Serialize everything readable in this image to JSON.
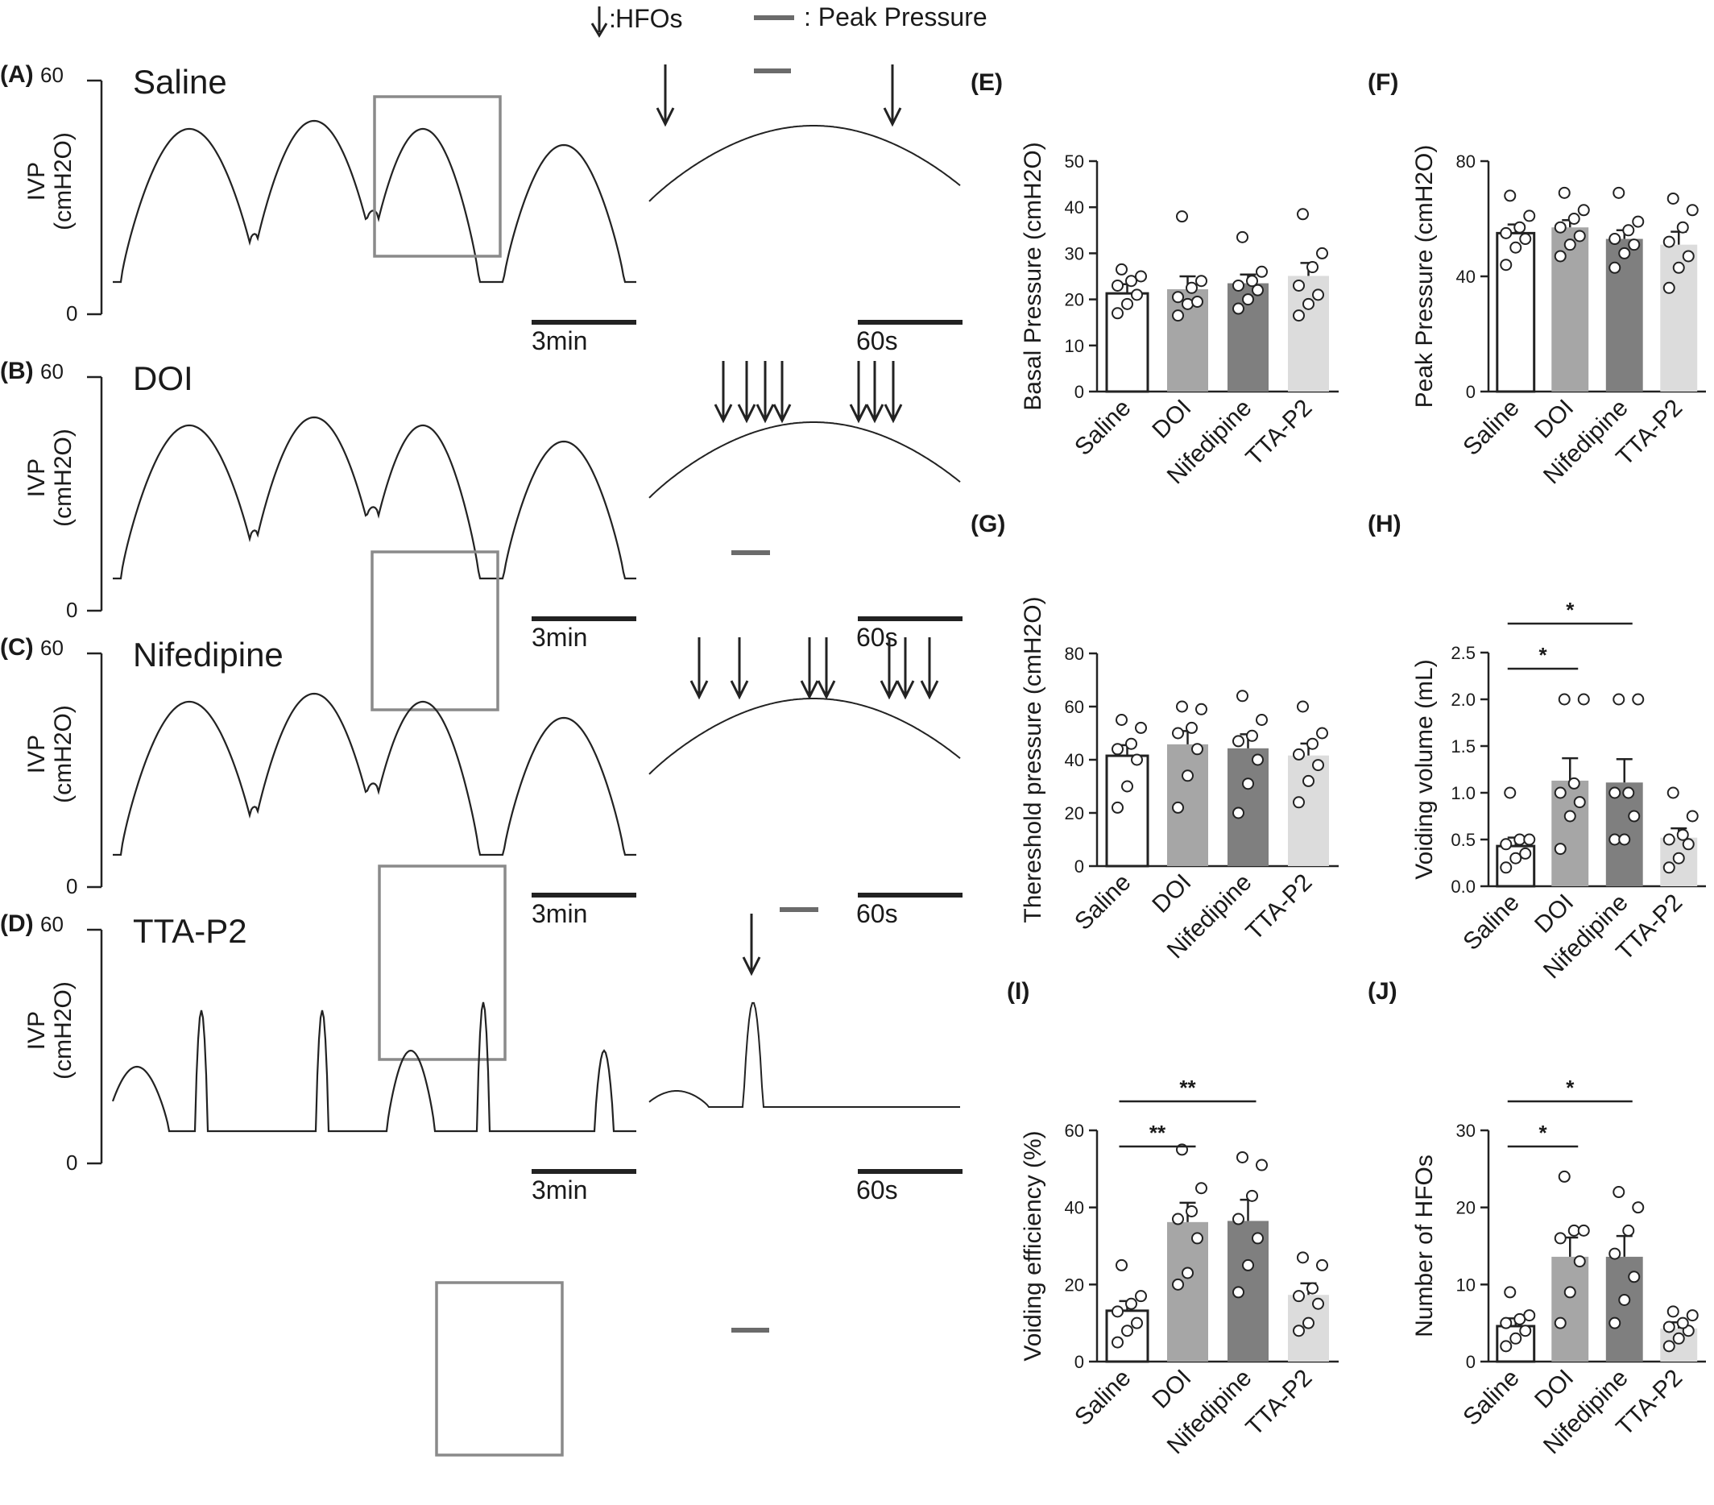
{
  "legend": {
    "hfo_label": "HFOs",
    "hfo_prefix": ":",
    "peak_label": ": Peak Pressure"
  },
  "traces": [
    {
      "letter": "(A)",
      "title": "Saline",
      "ylabel_top": "IVP",
      "ylabel_bottom": "(cmH2O)",
      "ymax": "60",
      "ymin": "0",
      "scale_long": "3min",
      "scale_short": "60s"
    },
    {
      "letter": "(B)",
      "title": "DOI",
      "ylabel_top": "IVP",
      "ylabel_bottom": "(cmH2O)",
      "ymax": "60",
      "ymin": "0",
      "scale_long": "3min",
      "scale_short": "60s"
    },
    {
      "letter": "(C)",
      "title": "Nifedipine",
      "ylabel_top": "IVP",
      "ylabel_bottom": "(cmH2O)",
      "ymax": "60",
      "ymin": "0",
      "scale_long": "3min",
      "scale_short": "60s"
    },
    {
      "letter": "(D)",
      "title": "TTA-P2",
      "ylabel_top": "IVP",
      "ylabel_bottom": "(cmH2O)",
      "ymax": "60",
      "ymin": "0",
      "scale_long": "3min",
      "scale_short": "60s"
    }
  ],
  "bar_colors": [
    "#ffffff",
    "#a6a6a6",
    "#7f7f7f",
    "#dcdcdc"
  ],
  "chart_data": [
    {
      "panel": "(E)",
      "type": "bar",
      "categories": [
        "Saline",
        "DOI",
        "Nifedipine",
        "TTA-P2"
      ],
      "ylabel": "Basal Pressure (cmH2O)",
      "ylim": [
        0,
        50
      ],
      "yticks": [
        0,
        10,
        20,
        30,
        40,
        50
      ],
      "values": [
        21.3,
        22.2,
        23.5,
        25.1
      ],
      "sem": [
        2.0,
        2.8,
        1.9,
        2.8
      ],
      "points": [
        [
          17,
          19,
          21,
          23,
          24,
          25,
          26.5
        ],
        [
          16.5,
          19,
          19.5,
          20.5,
          22.5,
          24,
          38
        ],
        [
          18,
          20,
          22,
          23,
          24,
          26,
          33.5
        ],
        [
          16.5,
          19,
          21,
          23,
          27,
          30,
          38.5
        ]
      ],
      "significance": []
    },
    {
      "panel": "(F)",
      "type": "bar",
      "categories": [
        "Saline",
        "DOI",
        "Nifedipine",
        "TTA-P2"
      ],
      "ylabel": "Peak Pressure (cmH2O)",
      "ylim": [
        0,
        80
      ],
      "yticks": [
        0,
        40,
        80
      ],
      "values": [
        55,
        57,
        53,
        51
      ],
      "sem": [
        3.0,
        2.5,
        3.0,
        4.5
      ],
      "points": [
        [
          44,
          50,
          53,
          55,
          57,
          61,
          68
        ],
        [
          47,
          51,
          54,
          57,
          60,
          63,
          69
        ],
        [
          43,
          48,
          51,
          53,
          56,
          59,
          69
        ],
        [
          36,
          43,
          47,
          52,
          57,
          63,
          67
        ]
      ],
      "significance": []
    },
    {
      "panel": "(G)",
      "type": "bar",
      "categories": [
        "Saline",
        "DOI",
        "Nifedipine",
        "TTA-P2"
      ],
      "ylabel": "Thereshold pressure (cmH2O)",
      "ylim": [
        0,
        80
      ],
      "yticks": [
        0,
        20,
        40,
        60,
        80
      ],
      "values": [
        41.5,
        45.8,
        44.3,
        41.6
      ],
      "sem": [
        4.0,
        5.0,
        5.3,
        4.5
      ],
      "points": [
        [
          22,
          30,
          40,
          44,
          46,
          52,
          55
        ],
        [
          22,
          34,
          44,
          50,
          52,
          59,
          60
        ],
        [
          20,
          31,
          40,
          47,
          49,
          55,
          64
        ],
        [
          24,
          32,
          38,
          42,
          46,
          50,
          60
        ]
      ],
      "significance": []
    },
    {
      "panel": "(H)",
      "type": "bar",
      "categories": [
        "Saline",
        "DOI",
        "Nifedipine",
        "TTA-P2"
      ],
      "ylabel": "Voiding volume (mL)",
      "ylim": [
        0,
        2.5
      ],
      "yticks": [
        0.0,
        0.5,
        1.0,
        1.5,
        2.0,
        2.5
      ],
      "values": [
        0.43,
        1.13,
        1.11,
        0.52
      ],
      "sem": [
        0.09,
        0.24,
        0.25,
        0.1
      ],
      "points": [
        [
          0.2,
          0.3,
          0.35,
          0.45,
          0.5,
          0.5,
          1.0
        ],
        [
          0.4,
          0.75,
          0.9,
          1.0,
          1.1,
          2.0,
          2.0
        ],
        [
          0.5,
          0.5,
          0.75,
          1.0,
          1.0,
          2.0,
          2.0
        ],
        [
          0.2,
          0.3,
          0.45,
          0.5,
          0.55,
          0.75,
          1.0
        ]
      ],
      "significance": [
        {
          "from": 0,
          "to": 1,
          "label": "*"
        },
        {
          "from": 0,
          "to": 2,
          "label": "*"
        }
      ]
    },
    {
      "panel": "(I)",
      "type": "bar",
      "categories": [
        "Saline",
        "DOI",
        "Nifedipine",
        "TTA-P2"
      ],
      "ylabel": "Voiding efficiency (%)",
      "ylim": [
        0,
        60
      ],
      "yticks": [
        0,
        20,
        40,
        60
      ],
      "values": [
        13.2,
        36.2,
        36.5,
        17.3
      ],
      "sem": [
        2.5,
        5.0,
        5.5,
        3.0
      ],
      "points": [
        [
          5,
          8,
          10,
          13,
          15,
          17,
          25
        ],
        [
          20,
          23,
          32,
          37,
          39,
          45,
          55
        ],
        [
          18,
          25,
          32,
          37,
          43,
          51,
          53
        ],
        [
          8,
          10,
          15,
          17,
          19,
          25,
          27
        ]
      ],
      "significance": [
        {
          "from": 0,
          "to": 1,
          "label": "**"
        },
        {
          "from": 0,
          "to": 2,
          "label": "**"
        }
      ]
    },
    {
      "panel": "(J)",
      "type": "bar",
      "categories": [
        "Saline",
        "DOI",
        "Nifedipine",
        "TTA-P2"
      ],
      "ylabel": "Number of HFOs",
      "ylim": [
        0,
        30
      ],
      "yticks": [
        0,
        10,
        20,
        30
      ],
      "values": [
        4.6,
        13.6,
        13.6,
        4.3
      ],
      "sem": [
        1.0,
        2.5,
        2.7,
        0.8
      ],
      "points": [
        [
          2,
          3,
          4,
          5,
          5.5,
          6,
          9
        ],
        [
          5,
          9,
          13,
          16,
          17,
          17,
          24
        ],
        [
          5,
          8,
          11,
          14,
          17,
          20,
          22
        ],
        [
          2,
          3,
          4,
          4.5,
          5,
          6,
          6.5
        ]
      ],
      "significance": [
        {
          "from": 0,
          "to": 1,
          "label": "*"
        },
        {
          "from": 0,
          "to": 2,
          "label": "*"
        }
      ]
    }
  ]
}
